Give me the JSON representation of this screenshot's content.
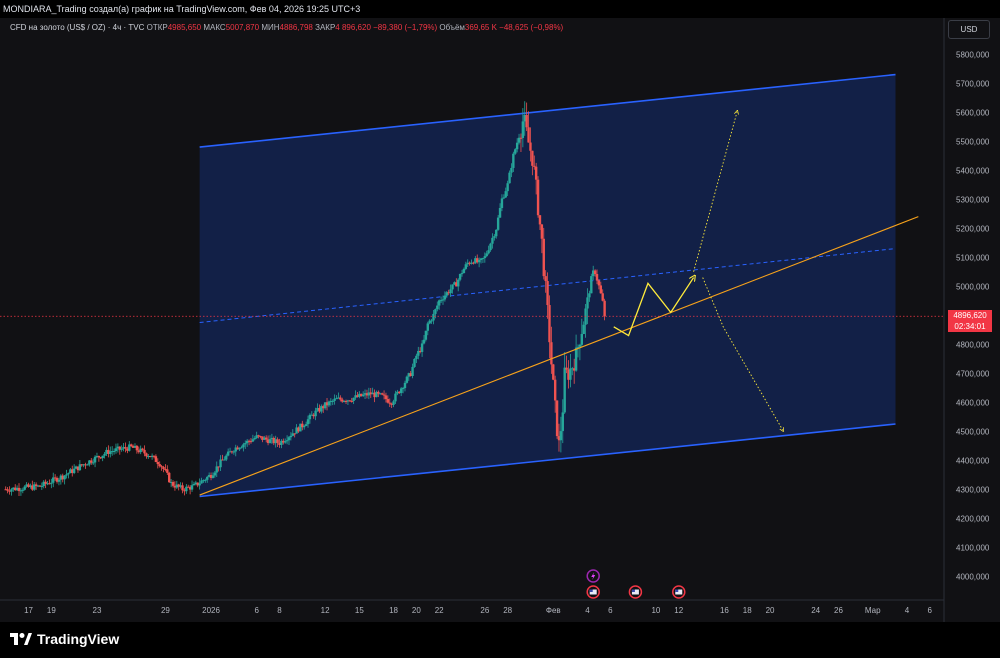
{
  "header": {
    "title": "MONDIARA_Trading создал(а) график на TradingView.com, Фев 04, 2026 19:25 UTC+3"
  },
  "legend": {
    "symbol": "CFD на золото (US$ / OZ) · 4ч · TVC",
    "open_label": "ОТКР",
    "open": "4985,650",
    "high_label": "МАКС",
    "high": "5007,870",
    "low_label": "МИН",
    "low": "4886,798",
    "close_label": "ЗАКР",
    "close": "4 896,620",
    "change": "−89,380 (−1,79%)",
    "volume_label": "Объём",
    "volume": "369,65 K",
    "volume_change": "−48,625 (−0,98%)"
  },
  "currency_button": "USD",
  "current_price": {
    "value": "4896,620",
    "countdown": "02:34:01"
  },
  "footer": {
    "brand": "TradingView"
  },
  "colors": {
    "background": "#111114",
    "up": "#26a69a",
    "down": "#ef5350",
    "channel_fill": "#132350",
    "channel_line": "#2962ff",
    "trendline": "#f7a21b",
    "projection": "#ffeb3b",
    "price_line": "#f23645"
  },
  "chart_data": {
    "type": "candlestick",
    "title": "CFD на золото (US$ / OZ) · 4ч · TVC",
    "ylim": [
      3925,
      5925
    ],
    "y_ticks": [
      "4000,000",
      "4100,000",
      "4200,000",
      "4300,000",
      "4400,000",
      "4500,000",
      "4600,000",
      "4700,000",
      "4800,000",
      "4900,000",
      "5000,000",
      "5100,000",
      "5200,000",
      "5300,000",
      "5400,000",
      "5500,000",
      "5600,000",
      "5700,000",
      "5800,000"
    ],
    "y_tick_values": [
      4000,
      4100,
      4200,
      4300,
      4400,
      4500,
      4600,
      4700,
      4800,
      4900,
      5000,
      5100,
      5200,
      5300,
      5400,
      5500,
      5600,
      5700,
      5800
    ],
    "x_ticks": [
      {
        "label": "17",
        "day": 17
      },
      {
        "label": "19",
        "day": 19
      },
      {
        "label": "23",
        "day": 23
      },
      {
        "label": "29",
        "day": 29
      },
      {
        "label": "2026",
        "day": 33
      },
      {
        "label": "6",
        "day": 37
      },
      {
        "label": "8",
        "day": 39
      },
      {
        "label": "12",
        "day": 43
      },
      {
        "label": "15",
        "day": 46
      },
      {
        "label": "18",
        "day": 49
      },
      {
        "label": "20",
        "day": 51
      },
      {
        "label": "22",
        "day": 53
      },
      {
        "label": "26",
        "day": 57
      },
      {
        "label": "28",
        "day": 59
      },
      {
        "label": "Фев",
        "day": 63
      },
      {
        "label": "4",
        "day": 66
      },
      {
        "label": "6",
        "day": 68
      },
      {
        "label": "10",
        "day": 72
      },
      {
        "label": "12",
        "day": 74
      },
      {
        "label": "16",
        "day": 78
      },
      {
        "label": "18",
        "day": 80
      },
      {
        "label": "20",
        "day": 82
      },
      {
        "label": "24",
        "day": 86
      },
      {
        "label": "26",
        "day": 88
      },
      {
        "label": "Мар",
        "day": 91
      },
      {
        "label": "4",
        "day": 94
      },
      {
        "label": "6",
        "day": 96
      }
    ],
    "price_path": [
      [
        15,
        4300
      ],
      [
        18,
        4310
      ],
      [
        20,
        4345
      ],
      [
        22,
        4390
      ],
      [
        24,
        4430
      ],
      [
        26,
        4445
      ],
      [
        27.5,
        4420
      ],
      [
        28.5,
        4390
      ],
      [
        29,
        4360
      ],
      [
        29.5,
        4320
      ],
      [
        30.5,
        4300
      ],
      [
        31.5,
        4310
      ],
      [
        33,
        4350
      ],
      [
        34,
        4400
      ],
      [
        35,
        4440
      ],
      [
        36,
        4460
      ],
      [
        37,
        4480
      ],
      [
        38,
        4470
      ],
      [
        39,
        4460
      ],
      [
        40,
        4490
      ],
      [
        41,
        4520
      ],
      [
        42,
        4560
      ],
      [
        43,
        4590
      ],
      [
        44,
        4610
      ],
      [
        45,
        4610
      ],
      [
        46,
        4620
      ],
      [
        47,
        4630
      ],
      [
        48,
        4620
      ],
      [
        48.8,
        4600
      ],
      [
        49.5,
        4640
      ],
      [
        50.5,
        4700
      ],
      [
        51,
        4760
      ],
      [
        51.6,
        4800
      ],
      [
        52,
        4870
      ],
      [
        52.5,
        4900
      ],
      [
        53,
        4950
      ],
      [
        53.5,
        4970
      ],
      [
        54,
        4990
      ],
      [
        54.5,
        5010
      ],
      [
        55,
        5050
      ],
      [
        55.5,
        5080
      ],
      [
        56,
        5090
      ],
      [
        56.5,
        5080
      ],
      [
        57,
        5100
      ],
      [
        57.5,
        5150
      ],
      [
        58,
        5200
      ],
      [
        58.5,
        5300
      ],
      [
        59,
        5350
      ],
      [
        59.5,
        5450
      ],
      [
        60,
        5520
      ],
      [
        60.4,
        5580
      ],
      [
        60.8,
        5500
      ],
      [
        61.2,
        5440
      ],
      [
        61.6,
        5300
      ],
      [
        62,
        5150
      ],
      [
        62.3,
        5000
      ],
      [
        62.6,
        4860
      ],
      [
        62.9,
        4700
      ],
      [
        63.2,
        4560
      ],
      [
        63.5,
        4450
      ],
      [
        63.8,
        4560
      ],
      [
        64,
        4690
      ],
      [
        64.3,
        4700
      ],
      [
        64.6,
        4720
      ],
      [
        65,
        4760
      ],
      [
        65.3,
        4820
      ],
      [
        65.6,
        4870
      ],
      [
        66,
        4940
      ],
      [
        66.3,
        5020
      ],
      [
        66.6,
        5060
      ],
      [
        67,
        5000
      ],
      [
        67.3,
        4950
      ],
      [
        67.6,
        4897
      ]
    ],
    "channel": {
      "upper": [
        [
          32,
          5480
        ],
        [
          93,
          5730
        ]
      ],
      "lower": [
        [
          32,
          4275
        ],
        [
          93,
          4525
        ]
      ],
      "midline": [
        [
          32,
          4875
        ],
        [
          93,
          5130
        ]
      ]
    },
    "trendline": [
      [
        32,
        4280
      ],
      [
        95,
        5240
      ]
    ],
    "projection_zigzag": [
      [
        68.3,
        4860
      ],
      [
        69.6,
        4830
      ],
      [
        71.3,
        5010
      ],
      [
        73.3,
        4910
      ],
      [
        75.3,
        5030
      ]
    ],
    "projection_up": [
      [
        75.3,
        5050
      ],
      [
        79.1,
        5600
      ]
    ],
    "projection_down": [
      [
        76.1,
        5030
      ],
      [
        77.9,
        4860
      ],
      [
        83.1,
        4505
      ]
    ],
    "current_price": 4896.62,
    "events": [
      {
        "icon": "flash-icon",
        "day": 66.5
      },
      {
        "icon": "us-flag-icon",
        "day": 66.5
      },
      {
        "icon": "us-flag-icon",
        "day": 70.2
      },
      {
        "icon": "us-flag-icon",
        "day": 74
      }
    ]
  }
}
